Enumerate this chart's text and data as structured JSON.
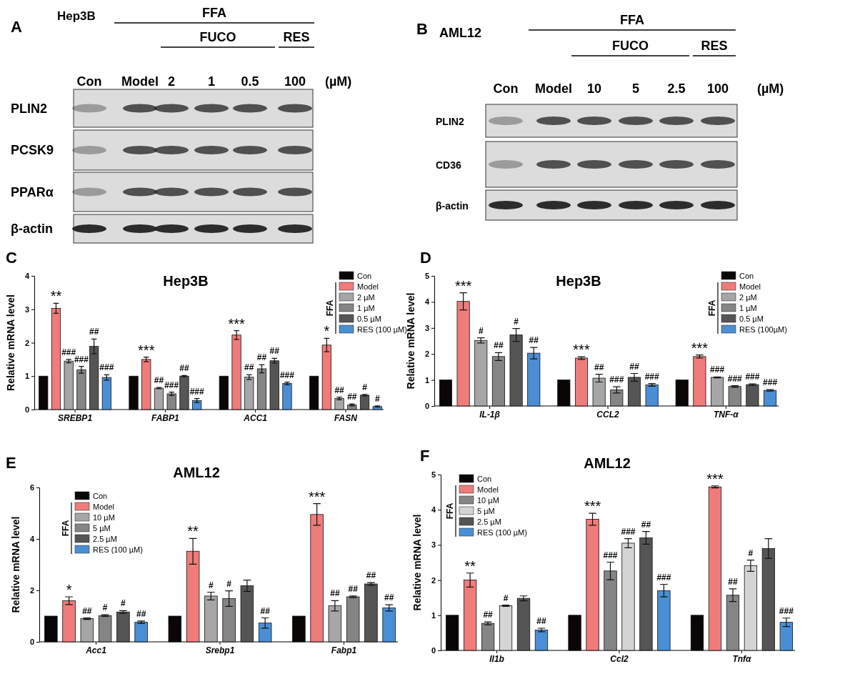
{
  "chart_data": [
    {
      "type": "other",
      "title": "Hep3B",
      "categories": [
        "Con",
        "Model",
        "2",
        "1",
        "0.5",
        "100"
      ],
      "y_categories": [
        "PLIN2",
        "PCSK9",
        "PPARα",
        "β-actin"
      ],
      "annotations": [
        "A",
        "FFA",
        "FUCO",
        "RES",
        "(µM)"
      ]
    },
    {
      "type": "other",
      "title": "AML12",
      "categories": [
        "Con",
        "Model",
        "10",
        "5",
        "2.5",
        "100"
      ],
      "y_categories": [
        "PLIN2",
        "CD36",
        "β-actin"
      ],
      "annotations": [
        "B",
        "FFA",
        "FUCO",
        "RES",
        "(µM)"
      ]
    },
    {
      "type": "bar",
      "title": "Hep3B",
      "ylabel": "Relative mRNA level",
      "categories": [
        "SREBP1",
        "FABP1",
        "ACC1",
        "FASN"
      ],
      "ylim": [
        0,
        4
      ],
      "yticks": [
        0,
        1,
        2,
        3,
        4
      ],
      "legend": "top right",
      "legend_title": "FFA",
      "annotations": [
        "C"
      ],
      "series": [
        {
          "name": "Con",
          "color": "#0a0606",
          "values": [
            1,
            1,
            1,
            1
          ]
        },
        {
          "name": "Model",
          "color": "#f07b7b",
          "values": [
            3.03,
            1.5,
            2.23,
            1.93
          ],
          "errors": [
            0.15,
            0.07,
            0.13,
            0.2
          ],
          "value_labels": [
            "**",
            "***",
            "***",
            "*"
          ]
        },
        {
          "name": "2 µM",
          "color": "#a6a6a8",
          "values": [
            1.45,
            0.64,
            0.97,
            0.33
          ],
          "errors": [
            0.05,
            0.02,
            0.07,
            0.04
          ],
          "value_labels": [
            "###",
            "##",
            "##",
            "##"
          ]
        },
        {
          "name": "1 µM",
          "color": "#858585",
          "values": [
            1.19,
            0.47,
            1.22,
            0.14
          ],
          "errors": [
            0.1,
            0.05,
            0.12,
            0.03
          ],
          "value_labels": [
            "###",
            "###",
            "##",
            "##"
          ]
        },
        {
          "name": "0.5 µM",
          "color": "#555555",
          "values": [
            1.89,
            1.0,
            1.46,
            0.43
          ],
          "errors": [
            0.22,
            0.02,
            0.07,
            0.02
          ],
          "value_labels": [
            "##",
            "##",
            "##",
            "#"
          ]
        },
        {
          "name": "RES (100 µM)",
          "color": "#4a8fd6",
          "values": [
            0.96,
            0.27,
            0.78,
            0.09
          ],
          "errors": [
            0.08,
            0.06,
            0.04,
            0.02
          ],
          "value_labels": [
            "###",
            "###",
            "###",
            "#"
          ]
        }
      ]
    },
    {
      "type": "bar",
      "title": "Hep3B",
      "ylabel": "Relative mRNA level",
      "categories": [
        "IL-1β",
        "CCL2",
        "TNF-α"
      ],
      "ylim": [
        0,
        5
      ],
      "yticks": [
        0,
        1,
        2,
        3,
        4,
        5
      ],
      "legend": "top right",
      "legend_title": "FFA",
      "annotations": [
        "D"
      ],
      "series": [
        {
          "name": "Con",
          "color": "#0a0606",
          "values": [
            1,
            1,
            1
          ]
        },
        {
          "name": "Model",
          "color": "#f07b7b",
          "values": [
            4.02,
            1.84,
            1.9
          ],
          "errors": [
            0.33,
            0.05,
            0.06
          ],
          "value_labels": [
            "***",
            "***",
            "***"
          ]
        },
        {
          "name": "2 µM",
          "color": "#a6a6a8",
          "values": [
            2.52,
            1.07,
            1.1
          ],
          "errors": [
            0.1,
            0.15,
            0.02
          ],
          "value_labels": [
            "#",
            "##",
            "###"
          ]
        },
        {
          "name": "1 µM",
          "color": "#858585",
          "values": [
            1.9,
            0.62,
            0.75
          ],
          "errors": [
            0.15,
            0.12,
            0.03
          ],
          "value_labels": [
            "##",
            "###",
            "###"
          ]
        },
        {
          "name": "0.5 µM",
          "color": "#555555",
          "values": [
            2.73,
            1.1,
            0.82
          ],
          "errors": [
            0.25,
            0.15,
            0.03
          ],
          "value_labels": [
            "#",
            "##",
            "###"
          ]
        },
        {
          "name": "RES (100µM)",
          "color": "#4a8fd6",
          "values": [
            2.03,
            0.81,
            0.6
          ],
          "errors": [
            0.22,
            0.05,
            0.03
          ],
          "value_labels": [
            "##",
            "###",
            "###"
          ]
        }
      ]
    },
    {
      "type": "bar",
      "title": "AML12",
      "ylabel": "Relative mRNA level",
      "categories": [
        "Acc1",
        "Srebp1",
        "Fabp1"
      ],
      "ylim": [
        0,
        6
      ],
      "yticks": [
        0,
        2,
        4,
        6
      ],
      "legend": "top left",
      "legend_title": "FFA",
      "annotations": [
        "E"
      ],
      "series": [
        {
          "name": "Con",
          "color": "#0a0606",
          "values": [
            1,
            1,
            1
          ]
        },
        {
          "name": "Model",
          "color": "#f07b7b",
          "values": [
            1.6,
            3.52,
            4.95
          ],
          "errors": [
            0.15,
            0.5,
            0.42
          ],
          "value_labels": [
            "*",
            "**",
            "***"
          ]
        },
        {
          "name": "10 µM",
          "color": "#a6a6a8",
          "values": [
            0.9,
            1.78,
            1.4
          ],
          "errors": [
            0.03,
            0.15,
            0.2
          ],
          "value_labels": [
            "##",
            "#",
            "##"
          ]
        },
        {
          "name": "5 µM",
          "color": "#858585",
          "values": [
            1.02,
            1.68,
            1.75
          ],
          "errors": [
            0.03,
            0.3,
            0.03
          ],
          "value_labels": [
            "#",
            "#",
            "##"
          ]
        },
        {
          "name": "2.5 µM",
          "color": "#555555",
          "values": [
            1.16,
            2.18,
            2.25
          ],
          "errors": [
            0.05,
            0.22,
            0.05
          ],
          "value_labels": [
            "#",
            null,
            "##"
          ]
        },
        {
          "name": "RES (100 µM)",
          "color": "#4a8fd6",
          "values": [
            0.76,
            0.73,
            1.32
          ],
          "errors": [
            0.05,
            0.2,
            0.12
          ],
          "value_labels": [
            "##",
            "##",
            "##"
          ]
        }
      ]
    },
    {
      "type": "bar",
      "title": "AML12",
      "ylabel": "Relative mRNA level",
      "categories": [
        "Il1b",
        "Ccl2",
        "Tnfα"
      ],
      "ylim": [
        0,
        5
      ],
      "yticks": [
        0,
        1,
        2,
        3,
        4,
        5
      ],
      "legend": "top left",
      "legend_title": "FFA",
      "annotations": [
        "F"
      ],
      "series": [
        {
          "name": "Con",
          "color": "#0a0606",
          "values": [
            1,
            1,
            1
          ]
        },
        {
          "name": "Model",
          "color": "#f07b7b",
          "values": [
            2.0,
            3.73,
            4.65
          ],
          "errors": [
            0.2,
            0.17,
            0.03
          ],
          "value_labels": [
            "**",
            "***",
            "***"
          ]
        },
        {
          "name": "10 µM",
          "color": "#858585",
          "values": [
            0.77,
            2.26,
            1.57
          ],
          "errors": [
            0.04,
            0.25,
            0.18
          ],
          "value_labels": [
            "##",
            "###",
            "##"
          ]
        },
        {
          "name": "5 µM",
          "color": "#d4d4d4",
          "values": [
            1.27,
            3.05,
            2.41
          ],
          "errors": [
            0.02,
            0.13,
            0.16
          ],
          "value_labels": [
            "#",
            "###",
            "#"
          ]
        },
        {
          "name": "2.5 µM",
          "color": "#555555",
          "values": [
            1.48,
            3.2,
            2.9
          ],
          "errors": [
            0.07,
            0.18,
            0.28
          ],
          "value_labels": [
            null,
            "##",
            null
          ]
        },
        {
          "name": "RES (100 µM)",
          "color": "#4a8fd6",
          "values": [
            0.58,
            1.7,
            0.8
          ],
          "errors": [
            0.05,
            0.18,
            0.12
          ],
          "value_labels": [
            "##",
            "###",
            "###"
          ]
        }
      ]
    }
  ]
}
